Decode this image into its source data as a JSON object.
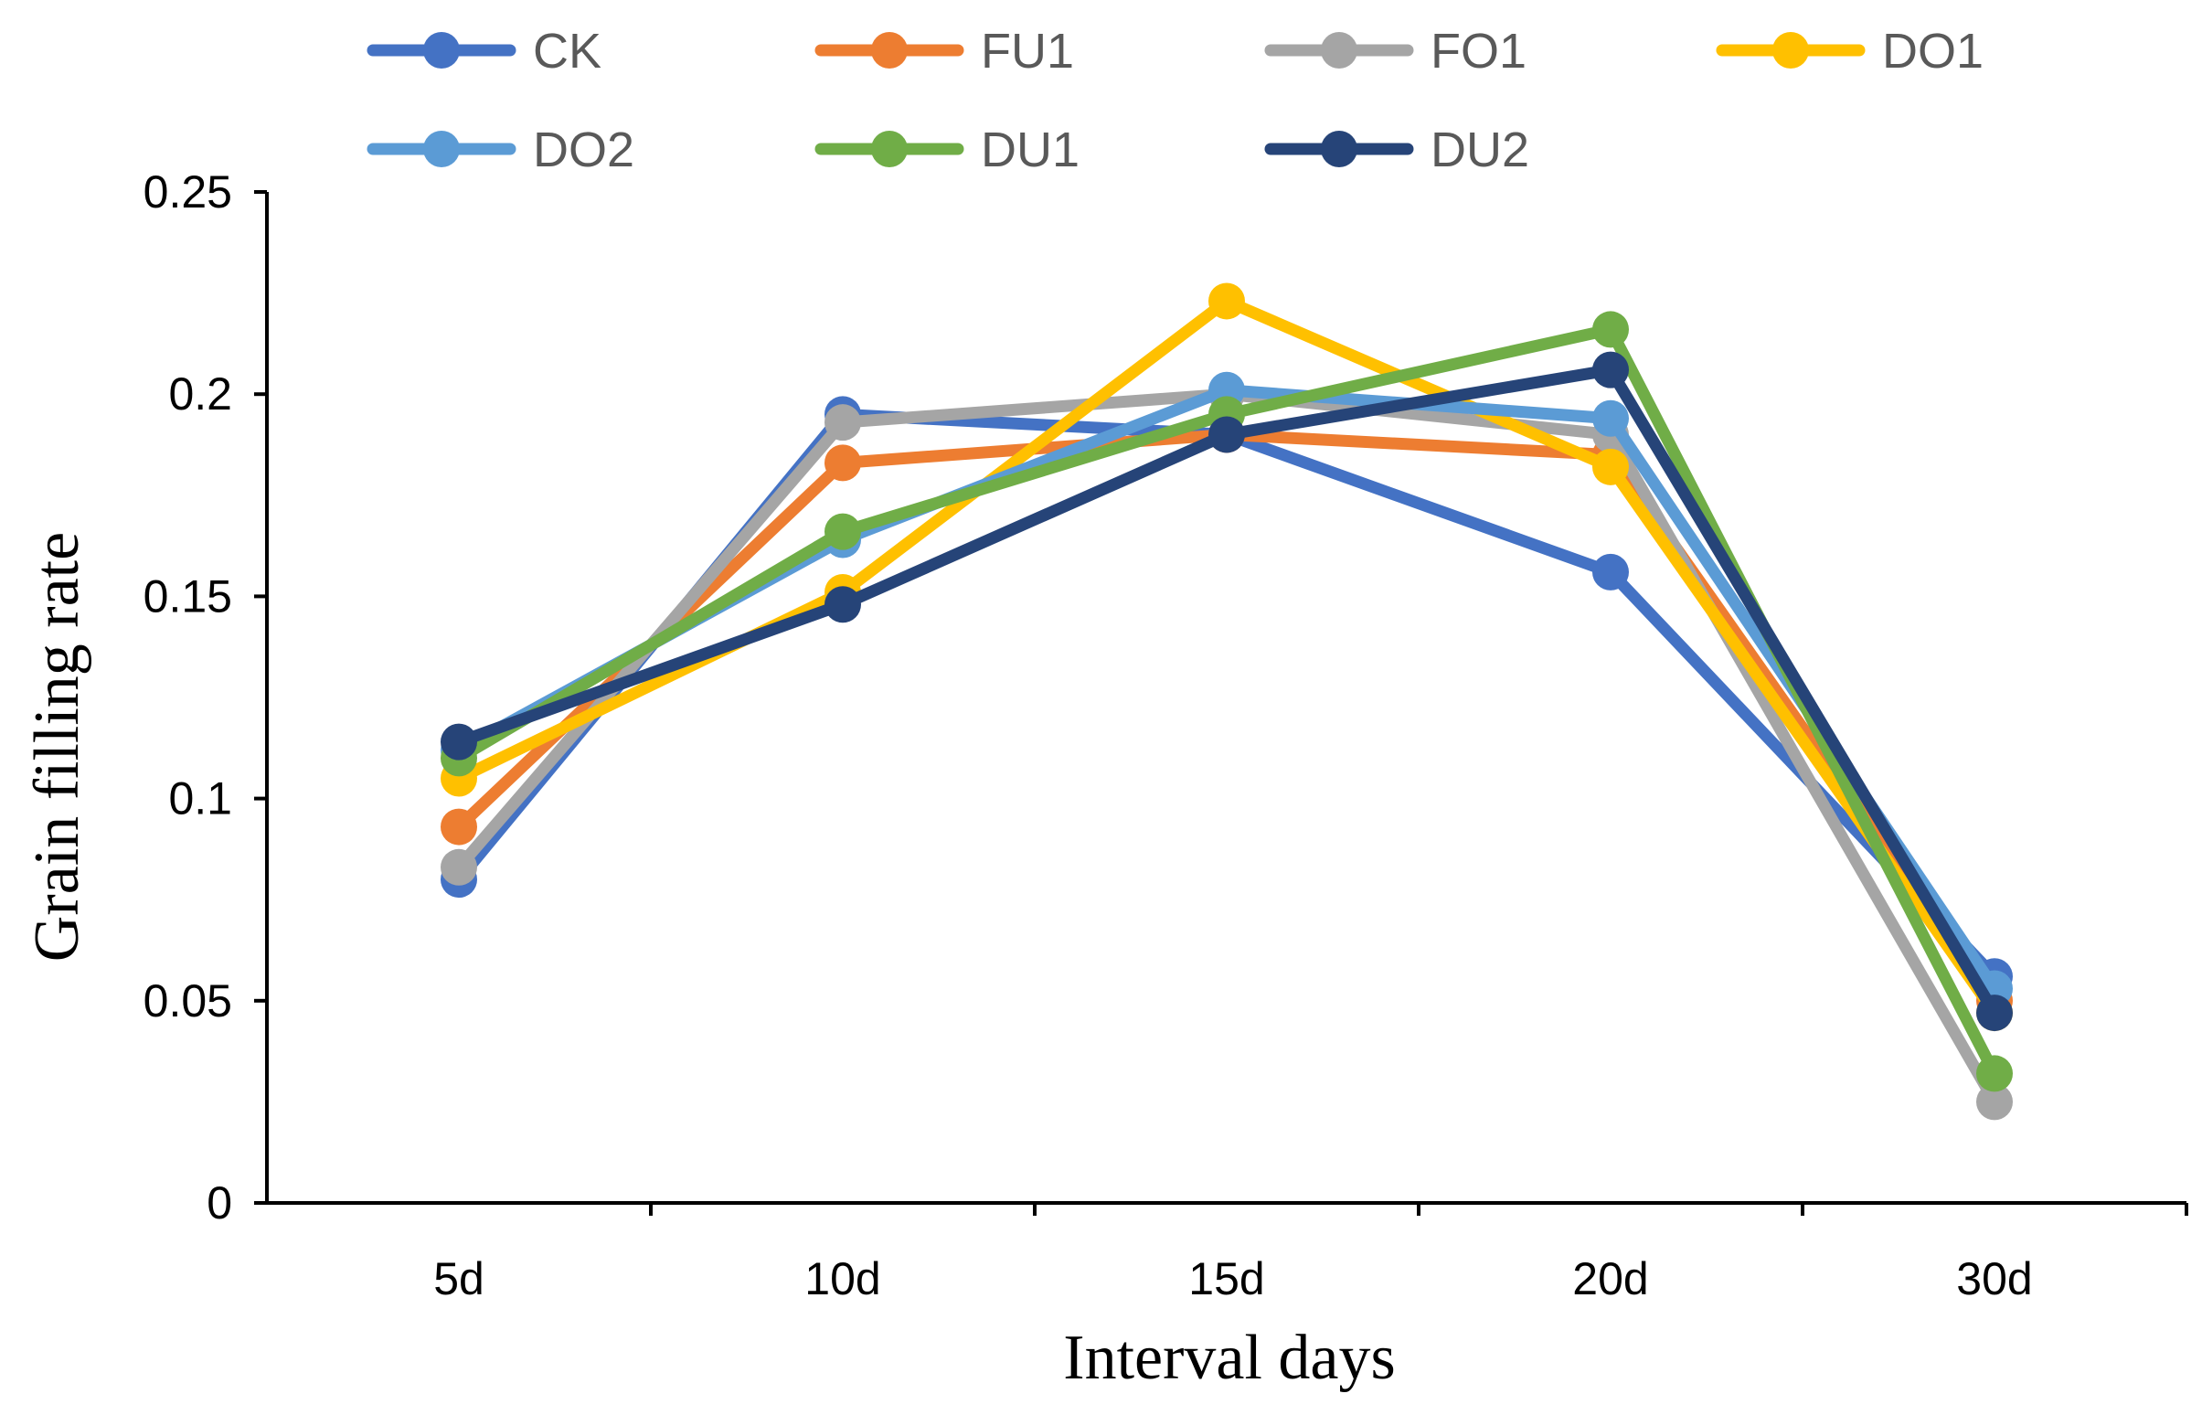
{
  "chart_data": {
    "type": "line",
    "title": "",
    "xlabel": "Interval days",
    "ylabel": "Grain filling rate",
    "categories": [
      "5d",
      "10d",
      "15d",
      "20d",
      "30d"
    ],
    "ylim": [
      0,
      0.25
    ],
    "yticks": [
      0,
      0.05,
      0.1,
      0.15,
      0.2,
      0.25
    ],
    "ytick_labels": [
      "0",
      "0.05",
      "0.1",
      "0.15",
      "0.2",
      "0.25"
    ],
    "grid": false,
    "legend_position": "top",
    "series": [
      {
        "name": "CK",
        "color": "#4472C4",
        "values": [
          0.08,
          0.195,
          0.19,
          0.156,
          0.056
        ]
      },
      {
        "name": "FU1",
        "color": "#ED7D31",
        "values": [
          0.093,
          0.183,
          0.19,
          0.185,
          0.05
        ]
      },
      {
        "name": "FO1",
        "color": "#A5A5A5",
        "values": [
          0.083,
          0.193,
          0.2,
          0.19,
          0.025
        ]
      },
      {
        "name": "DO1",
        "color": "#FFC000",
        "values": [
          0.105,
          0.151,
          0.223,
          0.182,
          0.047
        ]
      },
      {
        "name": "DO2",
        "color": "#5B9BD5",
        "values": [
          0.112,
          0.164,
          0.201,
          0.194,
          0.053
        ]
      },
      {
        "name": "DU1",
        "color": "#70AD47",
        "values": [
          0.11,
          0.166,
          0.195,
          0.216,
          0.032
        ]
      },
      {
        "name": "DU2",
        "color": "#264478",
        "values": [
          0.114,
          0.148,
          0.19,
          0.206,
          0.047
        ]
      }
    ]
  }
}
